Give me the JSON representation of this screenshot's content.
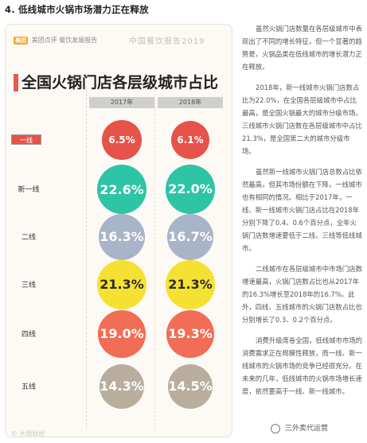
{
  "heading": "4. 低线城市火锅市场潜力正在释放",
  "card": {
    "brand_logo": "美团",
    "brand_name": "美团点评",
    "brand_sub": "餐饮发展报告",
    "report_name": "中国餐饮报告2019",
    "chart_title": "全国火锅门店各层级城市占比"
  },
  "chart_data": {
    "type": "table",
    "title": "全国火锅门店各层级城市占比",
    "columns": [
      "2017年",
      "2018年"
    ],
    "categories": [
      "一线",
      "新一线",
      "二线",
      "三线",
      "四线",
      "五线"
    ],
    "series": [
      {
        "name": "2017年",
        "values": [
          6.5,
          22.6,
          16.3,
          21.3,
          19.0,
          14.3
        ],
        "labels": [
          "6.5%",
          "22.6%",
          "16.3%",
          "21.3%",
          "19.0%",
          "14.3%"
        ]
      },
      {
        "name": "2018年",
        "values": [
          6.1,
          22.0,
          16.7,
          21.3,
          19.3,
          14.5
        ],
        "labels": [
          "6.1%",
          "22.0%",
          "16.7%",
          "21.3%",
          "19.3%",
          "14.5%"
        ]
      }
    ],
    "colors": [
      "#e6534a",
      "#2ec4a6",
      "#a8b4c8",
      "#f5e132",
      "#f26d55",
      "#b9ae9e"
    ]
  },
  "side_text": [
    "虽然火锅门店数量在各层级城市中表现出了不同的增长特征，但一个显著的趋势是，火锅品类在低线城市的增长潜力正在释放。",
    "2018年，新一线城市火锅门店数占比为22.0%，在全国各层级城市中占比最高，是全国火锅最大的城市分级市场。三线城市火锅门店数在各层级城市中占比21.3%，是全国第二大的城市分级市场。",
    "虽然新一线城市火锅门店总数占比依然最高，但其市场份额在下降，一线城市也有相同的情况。相比于2017年，一线、新一线城市火锅门店占比在2018年分别下降了0.4、0.6个百分点，全年火锅门店数增速要低于二线、三线等低线城市。",
    "二线城市在各层级城市中市场门店数增速最高，火锅门店数占比也从2017年的16.3%增长至2018年的16.7%。此外，四线、五线城市的火锅门店数占比也分别增长了0.3、0.2个百分点。",
    "消费升级席卷全国，低线城市市场的消费需求正在规模性释放，而一线、新一线城市的火锅市场的竞争已经很充分。在未来的几年，低线城市的火锅市场增长速度，依然要高于一线、新一线城市。"
  ],
  "watermark_left": "© 大眼财经",
  "watermark_right": "三外卖代运营"
}
